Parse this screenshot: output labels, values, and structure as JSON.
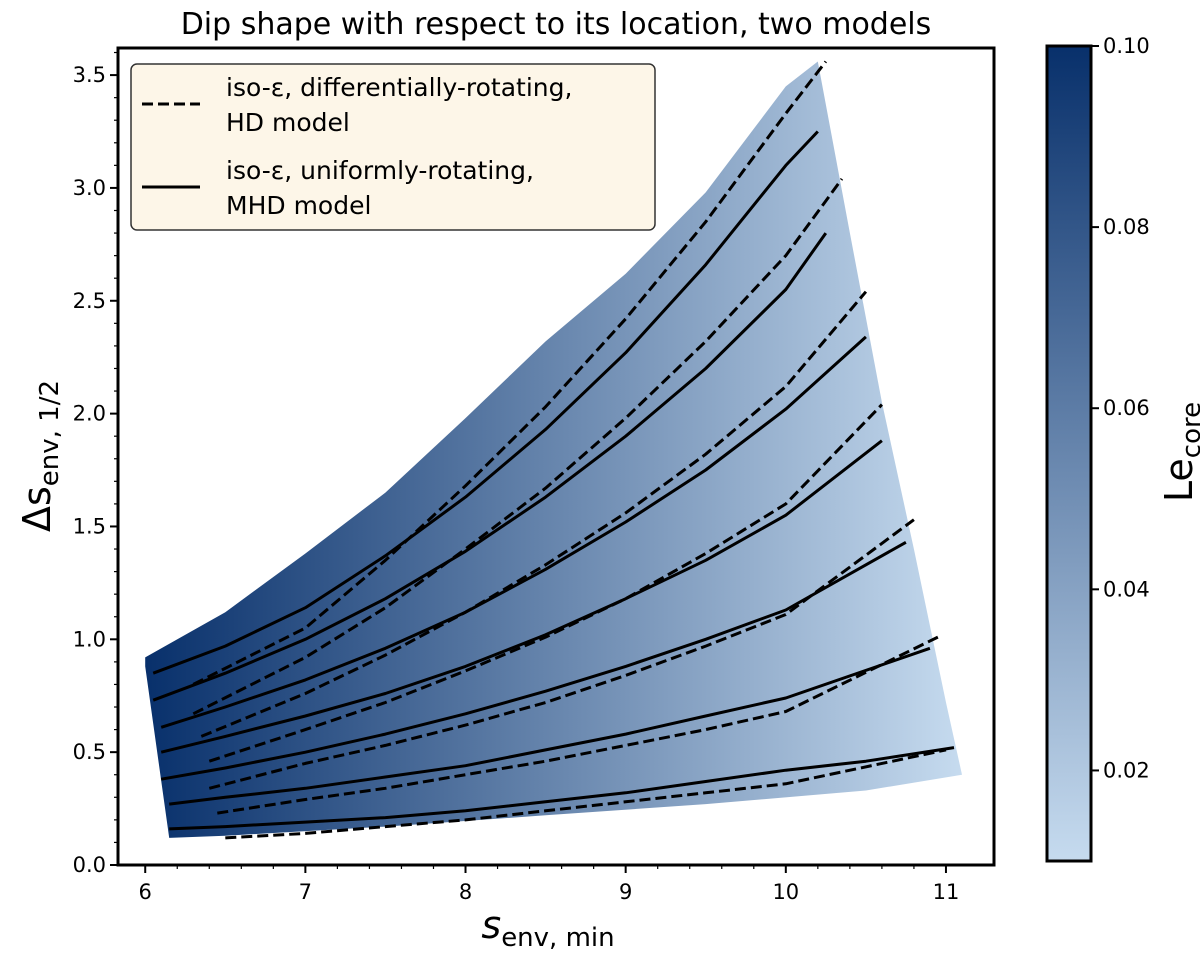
{
  "chart_data": {
    "type": "line",
    "title": "Dip shape with respect to its location, two models",
    "xlabel": {
      "main": "s",
      "sub": "env, min"
    },
    "ylabel": {
      "main": "Δs",
      "sub": "env, 1/2"
    },
    "xlim": [
      5.83,
      11.3
    ],
    "ylim": [
      0.0,
      3.62
    ],
    "xticks": [
      6,
      7,
      8,
      9,
      10,
      11
    ],
    "yticks": [
      0.0,
      0.5,
      1.0,
      1.5,
      2.0,
      2.5,
      3.0,
      3.5
    ],
    "xtick_labels": [
      "6",
      "7",
      "8",
      "9",
      "10",
      "11"
    ],
    "ytick_labels": [
      "0.0",
      "0.5",
      "1.0",
      "1.5",
      "2.0",
      "2.5",
      "3.0",
      "3.5"
    ],
    "colorbar": {
      "label_main": "Le",
      "label_sub": "core",
      "range": [
        0.01,
        0.1
      ],
      "ticks": [
        0.02,
        0.04,
        0.06,
        0.08,
        0.1
      ],
      "tick_labels": [
        "0.02",
        "0.04",
        "0.06",
        "0.08",
        "0.10"
      ],
      "color_low": "#c6dbef",
      "color_high": "#08306b"
    },
    "scatter_region": {
      "description_colors": [
        "#08306b",
        "#c6dbef"
      ],
      "outline": [
        [
          6.0,
          0.92
        ],
        [
          6.5,
          1.12
        ],
        [
          7.0,
          1.38
        ],
        [
          7.5,
          1.65
        ],
        [
          8.0,
          1.98
        ],
        [
          8.5,
          2.32
        ],
        [
          9.0,
          2.62
        ],
        [
          9.5,
          2.98
        ],
        [
          10.0,
          3.45
        ],
        [
          10.2,
          3.56
        ],
        [
          10.4,
          2.8
        ],
        [
          10.6,
          2.05
        ],
        [
          10.8,
          1.4
        ],
        [
          11.0,
          0.72
        ],
        [
          11.1,
          0.4
        ],
        [
          10.5,
          0.33
        ],
        [
          9.5,
          0.27
        ],
        [
          8.5,
          0.22
        ],
        [
          7.5,
          0.17
        ],
        [
          6.5,
          0.13
        ],
        [
          6.15,
          0.12
        ],
        [
          6.0,
          0.88
        ]
      ]
    },
    "legend": {
      "entries": [
        {
          "style": "dashed",
          "line1": "iso-ε, differentially-rotating,",
          "line2": "HD model"
        },
        {
          "style": "solid",
          "line1": "iso-ε, uniformly-rotating,",
          "line2": "MHD model"
        }
      ],
      "location": "upper-left",
      "background": "#fdf6e8"
    },
    "series": [
      {
        "name": "HD model, curve 1",
        "style": "dashed",
        "x": [
          6.3,
          7.0,
          7.5,
          8.0,
          8.5,
          9.0,
          9.5,
          10.0,
          10.25
        ],
        "y": [
          0.8,
          1.05,
          1.35,
          1.68,
          2.03,
          2.42,
          2.85,
          3.33,
          3.56
        ]
      },
      {
        "name": "HD model, curve 2",
        "style": "dashed",
        "x": [
          6.3,
          7.0,
          7.5,
          8.0,
          8.5,
          9.0,
          9.5,
          10.0,
          10.35
        ],
        "y": [
          0.67,
          0.92,
          1.14,
          1.4,
          1.67,
          1.98,
          2.32,
          2.7,
          3.04
        ]
      },
      {
        "name": "HD model, curve 3",
        "style": "dashed",
        "x": [
          6.35,
          7.0,
          7.5,
          8.0,
          8.5,
          9.0,
          9.5,
          10.0,
          10.5
        ],
        "y": [
          0.57,
          0.76,
          0.93,
          1.12,
          1.33,
          1.56,
          1.82,
          2.12,
          2.54
        ]
      },
      {
        "name": "HD model, curve 4",
        "style": "dashed",
        "x": [
          6.4,
          7.0,
          7.5,
          8.0,
          8.5,
          9.0,
          9.5,
          10.0,
          10.6
        ],
        "y": [
          0.46,
          0.6,
          0.72,
          0.86,
          1.01,
          1.18,
          1.38,
          1.6,
          2.04
        ]
      },
      {
        "name": "HD model, curve 5",
        "style": "dashed",
        "x": [
          6.4,
          7.0,
          7.5,
          8.0,
          8.5,
          9.0,
          9.5,
          10.0,
          10.8
        ],
        "y": [
          0.34,
          0.45,
          0.53,
          0.62,
          0.72,
          0.84,
          0.97,
          1.11,
          1.53
        ]
      },
      {
        "name": "HD model, curve 6",
        "style": "dashed",
        "x": [
          6.45,
          7.0,
          7.5,
          8.0,
          8.5,
          9.0,
          9.5,
          10.0,
          10.95
        ],
        "y": [
          0.23,
          0.29,
          0.34,
          0.4,
          0.46,
          0.53,
          0.6,
          0.68,
          1.01
        ]
      },
      {
        "name": "HD model, curve 7",
        "style": "dashed",
        "x": [
          6.5,
          7.0,
          7.5,
          8.0,
          8.5,
          9.0,
          9.5,
          10.0,
          11.0
        ],
        "y": [
          0.12,
          0.14,
          0.17,
          0.2,
          0.24,
          0.28,
          0.32,
          0.36,
          0.51
        ]
      },
      {
        "name": "MHD model, curve 1",
        "style": "solid",
        "x": [
          6.05,
          6.5,
          7.0,
          7.5,
          8.0,
          8.5,
          9.0,
          9.5,
          10.0,
          10.2
        ],
        "y": [
          0.85,
          0.97,
          1.14,
          1.37,
          1.63,
          1.93,
          2.27,
          2.66,
          3.1,
          3.25
        ]
      },
      {
        "name": "MHD model, curve 2",
        "style": "solid",
        "x": [
          6.05,
          6.5,
          7.0,
          7.5,
          8.0,
          8.5,
          9.0,
          9.5,
          10.0,
          10.25
        ],
        "y": [
          0.73,
          0.85,
          1.0,
          1.18,
          1.39,
          1.63,
          1.9,
          2.2,
          2.55,
          2.8
        ]
      },
      {
        "name": "MHD model, curve 3",
        "style": "solid",
        "x": [
          6.1,
          6.5,
          7.0,
          7.5,
          8.0,
          8.5,
          9.0,
          9.5,
          10.0,
          10.5
        ],
        "y": [
          0.61,
          0.7,
          0.82,
          0.96,
          1.12,
          1.31,
          1.52,
          1.75,
          2.02,
          2.34
        ]
      },
      {
        "name": "MHD model, curve 4",
        "style": "solid",
        "x": [
          6.1,
          6.5,
          7.0,
          7.5,
          8.0,
          8.5,
          9.0,
          9.5,
          10.0,
          10.6
        ],
        "y": [
          0.5,
          0.57,
          0.66,
          0.76,
          0.88,
          1.02,
          1.18,
          1.35,
          1.55,
          1.88
        ]
      },
      {
        "name": "MHD model, curve 5",
        "style": "solid",
        "x": [
          6.1,
          6.5,
          7.0,
          7.5,
          8.0,
          8.5,
          9.0,
          9.5,
          10.0,
          10.75
        ],
        "y": [
          0.38,
          0.43,
          0.5,
          0.58,
          0.67,
          0.77,
          0.88,
          1.0,
          1.13,
          1.43
        ]
      },
      {
        "name": "MHD model, curve 6",
        "style": "solid",
        "x": [
          6.15,
          6.5,
          7.0,
          7.5,
          8.0,
          8.5,
          9.0,
          9.5,
          10.0,
          10.9
        ],
        "y": [
          0.27,
          0.3,
          0.34,
          0.39,
          0.44,
          0.51,
          0.58,
          0.66,
          0.74,
          0.96
        ]
      },
      {
        "name": "MHD model, curve 7",
        "style": "solid",
        "x": [
          6.15,
          6.5,
          7.0,
          7.5,
          8.0,
          8.5,
          9.0,
          9.5,
          10.0,
          10.5,
          11.05
        ],
        "y": [
          0.16,
          0.17,
          0.19,
          0.21,
          0.24,
          0.28,
          0.32,
          0.37,
          0.42,
          0.46,
          0.52
        ]
      }
    ]
  }
}
